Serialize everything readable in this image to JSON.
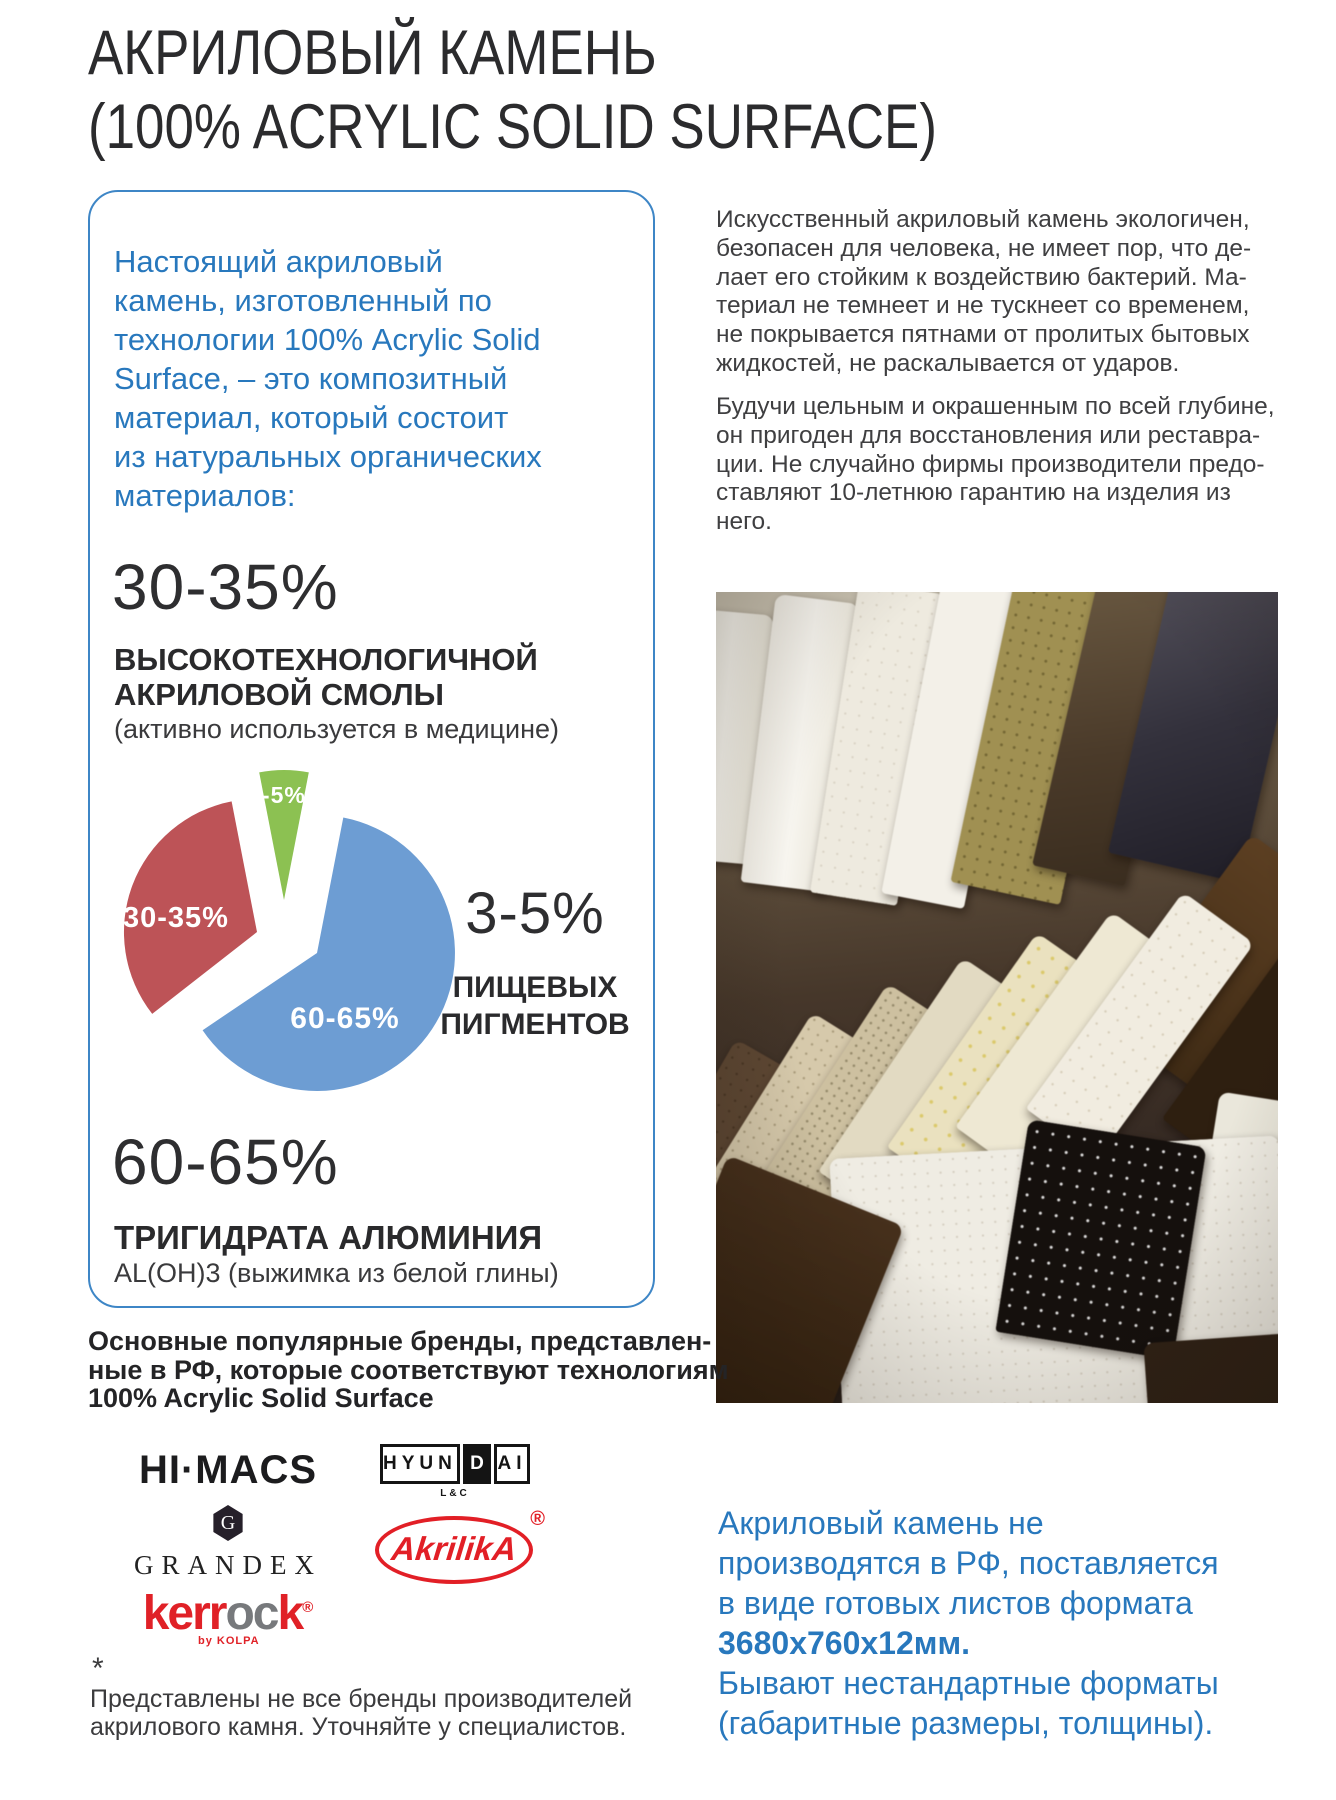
{
  "title": {
    "line1": "АКРИЛОВЫЙ КАМЕНЬ",
    "line2": "(100% ACRYLIC SOLID SURFACE)"
  },
  "info_box": {
    "border_color": "#3e86c6",
    "text_color": "#2878bd",
    "intro_lines": [
      "Настоящий акриловый",
      "камень, изготовленный по",
      "технологии 100% Acrylic Solid",
      "Surface, – это композитный",
      "материал, который состоит",
      "из натуральных органических",
      "материалов:"
    ],
    "component_resin": {
      "percent": "30-35%",
      "name_line1": "ВЫСОКОТЕХНОЛОГИЧНОЙ",
      "name_line2": "АКРИЛОВОЙ СМОЛЫ",
      "note": "(активно используется в медицине)"
    },
    "component_pigments": {
      "percent": "3-5%",
      "name_line1": "ПИЩЕВЫХ",
      "name_line2": "ПИГМЕНТОВ"
    },
    "component_ath": {
      "percent": "60-65%",
      "name": "ТРИГИДРАТА АЛЮМИНИЯ",
      "note": "AL(OH)3 (выжимка из белой глины)"
    }
  },
  "chart_data": {
    "type": "pie",
    "style": "exploded",
    "title": "",
    "labels_inside": true,
    "legend_position": "none",
    "slices": [
      {
        "label": "60-65%",
        "name": "ТРИГИДРАТА АЛЮМИНИЯ",
        "value": 62.5,
        "color": "#6d9dd3"
      },
      {
        "label": "30-35%",
        "name": "ВЫСОКОТЕХНОЛОГИЧНОЙ АКРИЛОВОЙ СМОЛЫ",
        "value": 32.5,
        "color": "#bd5357"
      },
      {
        "label": "3-5%",
        "name": "ПИЩЕВЫХ ПИГМЕНТОВ",
        "value": 4,
        "color": "#8cc152"
      }
    ]
  },
  "right_column": {
    "paragraph1_lines": [
      "Искусственный акриловый камень экологичен,",
      "безопасен для человека, не имеет пор, что де-",
      "лает его стойким к воздействию бактерий. Ма-",
      "териал не темнеет и не тускнеет со временем,",
      "не покрывается пятнами от пролитых бытовых",
      "жидкостей, не раскалывается от ударов."
    ],
    "paragraph2_lines": [
      "Будучи цельным и окрашенным по всей глубине,",
      "он пригоден для восстановления или реставра-",
      "ции. Не случайно фирмы производители предо-",
      "ставляют 10-летнюю гарантию на изделия из",
      "него."
    ],
    "photo_description": "Образцы акрилового камня разных цветов",
    "bottom_text_color": "#2878bd",
    "bottom_lines_before": [
      "Акриловый камень не",
      "производятся в РФ, поставляется",
      "в виде готовых листов формата"
    ],
    "bottom_bold_line": "3680х760х12мм.",
    "bottom_lines_after": [
      "Бывают нестандартные форматы",
      "(габаритные размеры, толщины)."
    ]
  },
  "brands": {
    "heading_lines": [
      "Основные популярные бренды, представлен-",
      "ные в РФ, которые соответствуют технологиям",
      "100% Acrylic Solid Surface"
    ],
    "himacs": {
      "text": "HI·MACS"
    },
    "hyundai": {
      "part1": "HYUN",
      "part2": "D",
      "part3": "AI",
      "sub": "L&C"
    },
    "grandex": {
      "monogram": "G",
      "text": "GRANDEX"
    },
    "akrilika": {
      "text": "AkrilikA",
      "reg": "®"
    },
    "kerrock": {
      "part1": "kerr",
      "part2": "oc",
      "part3": "k",
      "reg": "®",
      "sub": "by KOLPA"
    },
    "footnote_mark": "*",
    "footnote_lines": [
      "Представлены не все бренды производителей",
      "акрилового камня. Уточняйте у специалистов."
    ]
  }
}
